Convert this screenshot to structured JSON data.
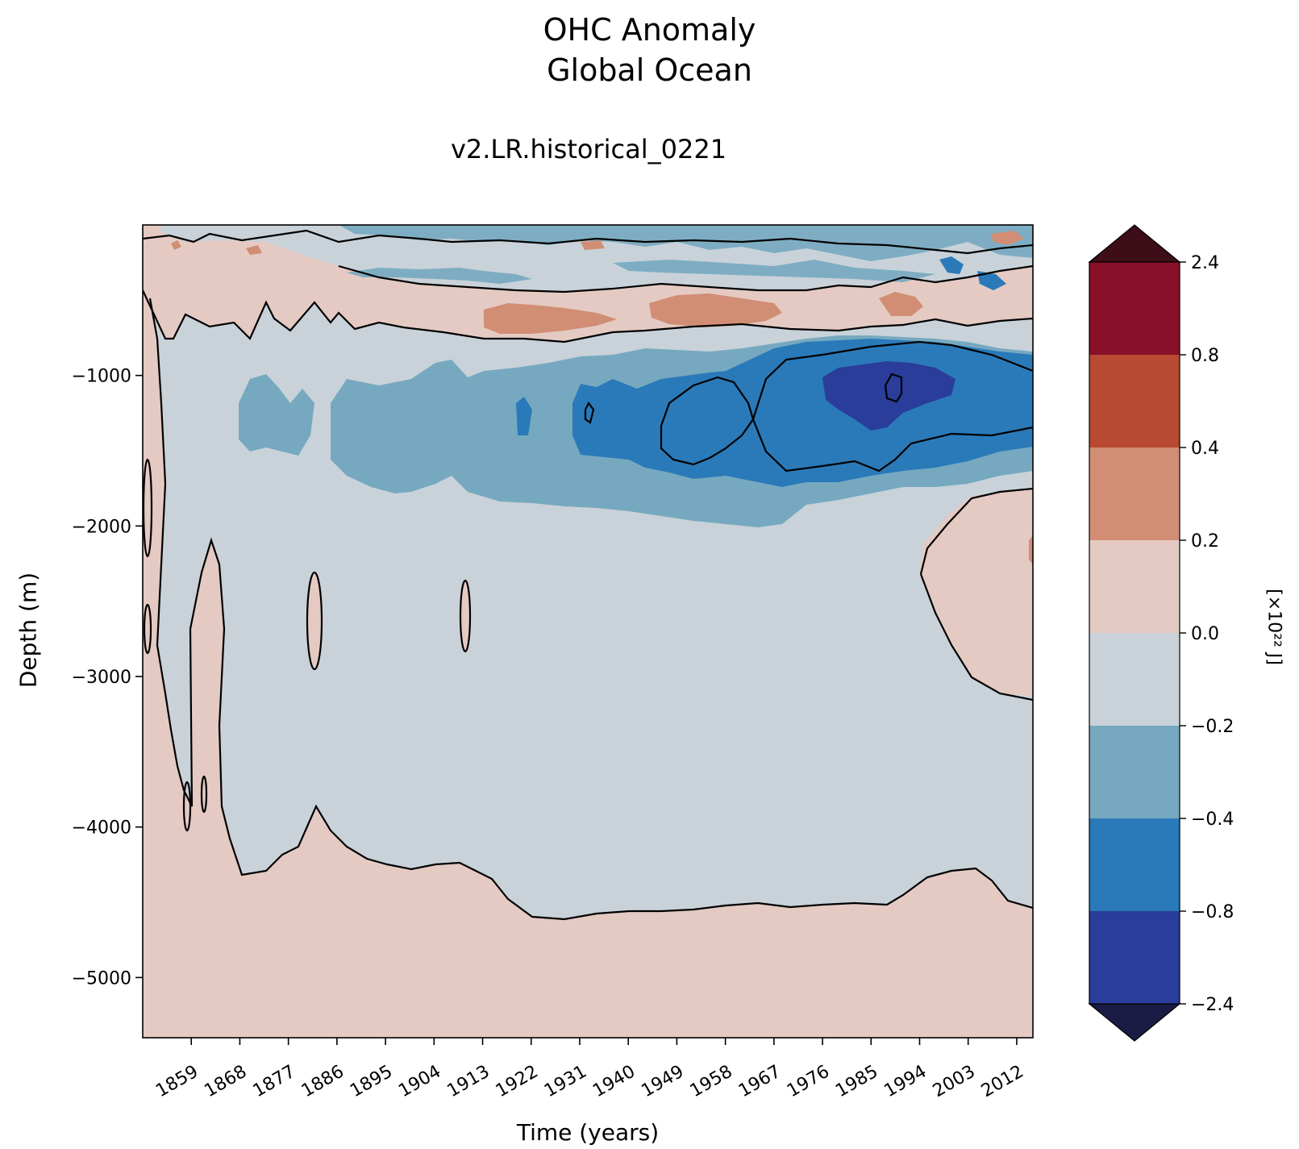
{
  "chart_data": {
    "type": "heatmap",
    "title_line1": "OHC Anomaly",
    "title_line2": "Global Ocean",
    "subtitle": "v2.LR.historical_0221",
    "xlabel": "Time (years)",
    "ylabel": "Depth (m)",
    "x_range": [
      1850,
      2015
    ],
    "y_range": [
      -5400,
      0
    ],
    "x_ticks": [
      "1859",
      "1868",
      "1877",
      "1886",
      "1895",
      "1904",
      "1913",
      "1922",
      "1931",
      "1940",
      "1949",
      "1958",
      "1967",
      "1976",
      "1985",
      "1994",
      "2003",
      "2012"
    ],
    "y_ticks": [
      {
        "value": -1000,
        "label": "−1000"
      },
      {
        "value": -2000,
        "label": "−2000"
      },
      {
        "value": -3000,
        "label": "−3000"
      },
      {
        "value": -4000,
        "label": "−4000"
      },
      {
        "value": -5000,
        "label": "−5000"
      }
    ],
    "colorbar": {
      "label": "[×10²² J]",
      "levels": [
        "2.4",
        "0.8",
        "0.4",
        "0.2",
        "0.0",
        "−0.2",
        "−0.4",
        "−0.8",
        "−2.4"
      ],
      "colors": [
        "#8a1029",
        "#b84a33",
        "#d18e74",
        "#e4cac3",
        "#c9d2d9",
        "#76a9c0",
        "#2a7ab9",
        "#2a3d9b"
      ],
      "over_color": "#3d0e17",
      "under_color": "#1a1c45"
    },
    "regions": [
      {
        "value_band": "0.0 to 0.2",
        "description": "shallow upper layer anomalies"
      },
      {
        "value_band": "-2.4 to -0.8",
        "description": "strongest cooling ~1000 m depth 1976-1995"
      }
    ]
  }
}
